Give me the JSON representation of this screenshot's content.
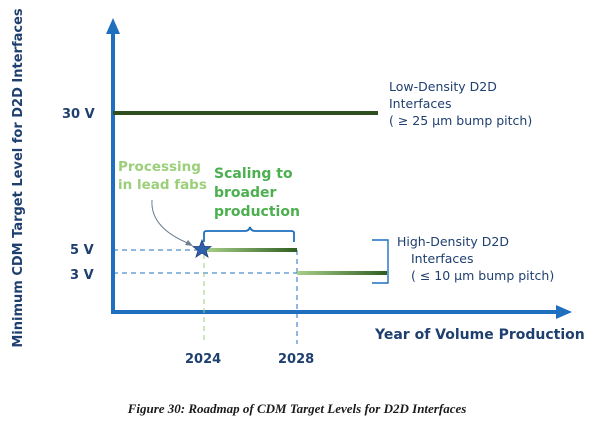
{
  "chart_data": {
    "type": "line",
    "xlabel": "Year of Volume Production",
    "ylabel": "Minimum CDM Target Level for D2D Interfaces",
    "x_ticks": [
      "2024",
      "2028"
    ],
    "y_ticks": [
      "30 V",
      "5 V",
      "3 V"
    ],
    "series": [
      {
        "name": "Low-Density D2D Interfaces",
        "y_level": "30 V",
        "x_range": [
          "start",
          "end"
        ]
      },
      {
        "name": "High-Density D2D Interfaces",
        "y_level": "5 V",
        "x_range": [
          "2024",
          "2028"
        ]
      },
      {
        "name": "High-Density D2D Interfaces",
        "y_level": "3 V",
        "x_range": [
          "2028",
          "beyond 2028"
        ]
      }
    ],
    "milestone": {
      "x": "2024",
      "y_level": "5 V",
      "marker": "star"
    }
  },
  "annotations": {
    "low_density": [
      "Low-Density D2D",
      "Interfaces",
      "( ≥ 25 µm bump pitch)"
    ],
    "high_density": [
      "High-Density D2D",
      "Interfaces",
      "( ≤ 10 µm bump pitch)"
    ],
    "processing": [
      "Processing",
      "in lead fabs"
    ],
    "scaling": [
      "Scaling to",
      "broader",
      "production"
    ]
  },
  "caption": "Figure 30:  Roadmap of CDM Target Levels for D2D Interfaces",
  "colors": {
    "axis": "#1f6fbf",
    "low_line": "#2f4f1f",
    "high_line_dark": "#2f5f1f",
    "high_line_light": "#a8cf8a",
    "processing_text": "#9ccf7a",
    "scaling_text": "#4caf50",
    "brace": "#1f6fbf",
    "label_dark": "#1f3f6f",
    "star": "#2f5faf"
  }
}
